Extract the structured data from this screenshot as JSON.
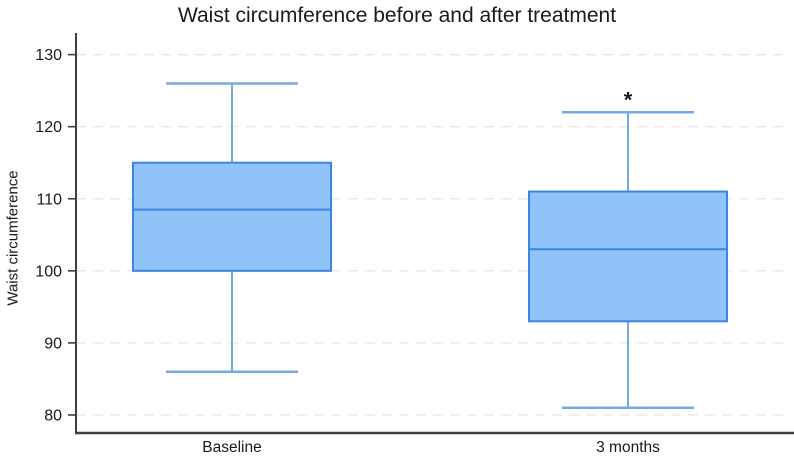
{
  "chart_data": {
    "type": "boxplot",
    "title": "Waist circumference before and after treatment",
    "ylabel": "Waist circumference",
    "xlabel": "",
    "categories": [
      "Baseline",
      "3 months"
    ],
    "series": [
      {
        "name": "Baseline",
        "min": 86,
        "q1": 100,
        "median": 108.5,
        "q3": 115,
        "max": 126
      },
      {
        "name": "3 months",
        "min": 81,
        "q1": 93,
        "median": 103,
        "q3": 111,
        "max": 122
      }
    ],
    "annotations": [
      {
        "text": "*",
        "category": "3 months",
        "position": "above-max"
      }
    ],
    "y_ticks": [
      80,
      90,
      100,
      110,
      120,
      130
    ],
    "ylim": [
      77.5,
      133
    ],
    "grid": "horizontal-dashed",
    "legend": "none",
    "colors": {
      "box_fill": "#8FC3F9",
      "box_stroke": "#3C85E0",
      "whisker": "#74A9E8",
      "axis": "#3F3F3F",
      "gridline": "#E7E7E7",
      "text": "#1A1A1A"
    }
  }
}
